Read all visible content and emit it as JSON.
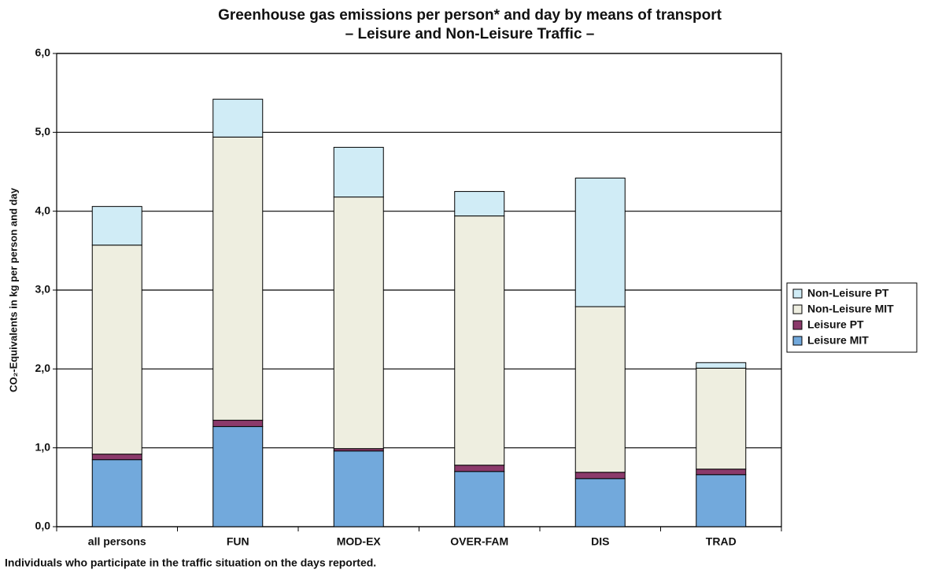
{
  "chart_data": {
    "type": "stacked_bar",
    "title": "Greenhouse gas emissions per person* and day by means of transport",
    "subtitle": "– Leisure and Non-Leisure Traffic –",
    "y_label": "CO₂-Equivalents in kg per person and day",
    "footnote": "Individuals who participate in the traffic situation on the days reported.",
    "categories": [
      "all persons",
      "FUN",
      "MOD-EX",
      "OVER-FAM",
      "DIS",
      "TRAD"
    ],
    "series": [
      {
        "name": "Leisure MIT",
        "color": "#72a9dc",
        "values": [
          0.85,
          1.27,
          0.96,
          0.7,
          0.61,
          0.66
        ]
      },
      {
        "name": "Leisure PT",
        "color": "#8b3a6b",
        "values": [
          0.07,
          0.08,
          0.03,
          0.08,
          0.08,
          0.07
        ]
      },
      {
        "name": "Non-Leisure MIT",
        "color": "#eeeee0",
        "values": [
          2.65,
          3.59,
          3.19,
          3.16,
          2.1,
          1.28
        ]
      },
      {
        "name": "Non-Leisure PT",
        "color": "#d0ecf6",
        "values": [
          0.49,
          0.48,
          0.63,
          0.31,
          1.63,
          0.07
        ]
      }
    ],
    "ylim": [
      0,
      6
    ],
    "yticks": [
      {
        "value": 0,
        "label": "0,0"
      },
      {
        "value": 1,
        "label": "1,0"
      },
      {
        "value": 2,
        "label": "2,0"
      },
      {
        "value": 3,
        "label": "3,0"
      },
      {
        "value": 4,
        "label": "4,0"
      },
      {
        "value": 5,
        "label": "5,0"
      },
      {
        "value": 6,
        "label": "6,0"
      }
    ],
    "grid": true,
    "legend": "right"
  }
}
